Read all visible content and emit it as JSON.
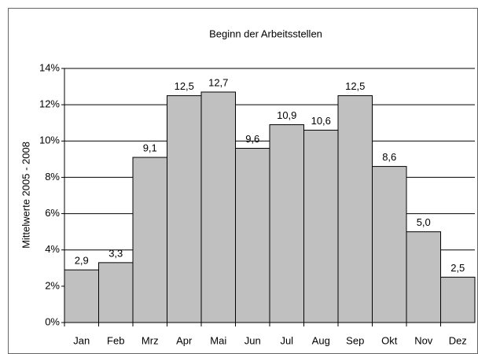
{
  "chart_data": {
    "type": "bar",
    "title": "Beginn der Arbeitsstellen",
    "y_label": "Mittelwerte 2005 - 2008",
    "categories": [
      "Jan",
      "Feb",
      "Mrz",
      "Apr",
      "Mai",
      "Jun",
      "Jul",
      "Aug",
      "Sep",
      "Okt",
      "Nov",
      "Dez"
    ],
    "values": [
      2.9,
      3.3,
      9.1,
      12.5,
      12.7,
      9.6,
      10.9,
      10.6,
      12.5,
      8.6,
      5.0,
      2.5
    ],
    "value_labels": [
      "2,9",
      "3,3",
      "9,1",
      "12,5",
      "12,7",
      "9,6",
      "10,9",
      "10,6",
      "12,5",
      "8,6",
      "5,0",
      "2,5"
    ],
    "color": "#c0c0c0",
    "ylim": [
      0,
      14
    ],
    "yticks": [
      {
        "value": 0,
        "label": "0%"
      },
      {
        "value": 2,
        "label": "2%"
      },
      {
        "value": 4,
        "label": "4%"
      },
      {
        "value": 6,
        "label": "6%"
      },
      {
        "value": 8,
        "label": "8%"
      },
      {
        "value": 10,
        "label": "10%"
      },
      {
        "value": 12,
        "label": "12%"
      },
      {
        "value": 14,
        "label": "14%"
      }
    ],
    "grid": true
  }
}
